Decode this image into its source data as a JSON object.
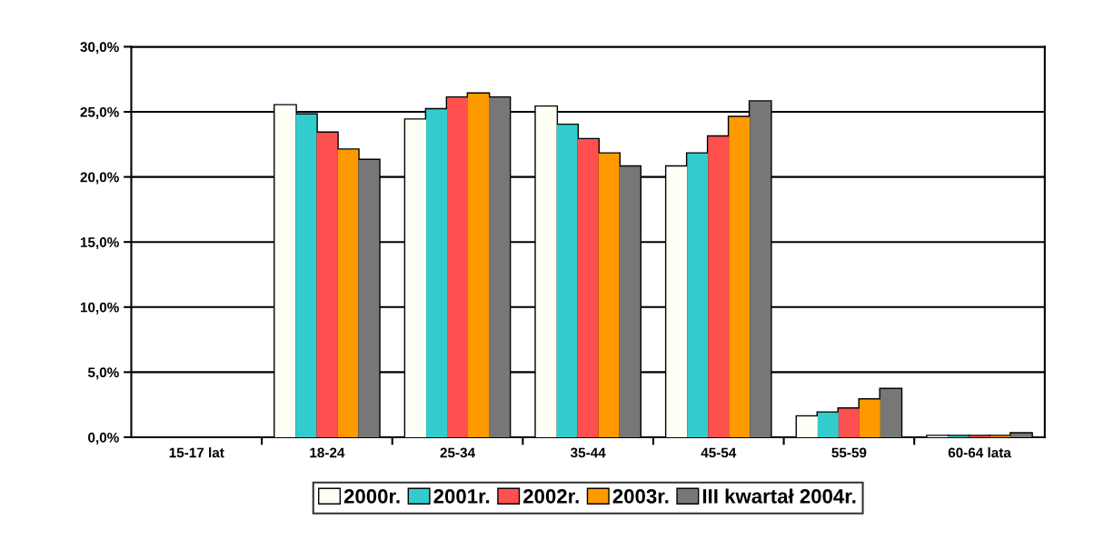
{
  "chart_data": {
    "type": "bar",
    "categories": [
      "15-17 lat",
      "18-24",
      "25-34",
      "35-44",
      "45-54",
      "55-59",
      "60-64 lata"
    ],
    "series": [
      {
        "name": "2000r.",
        "color": "#fffff5",
        "values": [
          0.0,
          25.5,
          24.4,
          25.4,
          20.8,
          1.6,
          0.1
        ]
      },
      {
        "name": "2001r.",
        "color": "#33cccc",
        "values": [
          0.0,
          24.8,
          25.2,
          24.0,
          21.8,
          1.9,
          0.1
        ]
      },
      {
        "name": "2002r.",
        "color": "#ff5050",
        "values": [
          0.0,
          23.4,
          26.1,
          22.9,
          23.1,
          2.2,
          0.1
        ]
      },
      {
        "name": "2003r.",
        "color": "#ff9900",
        "values": [
          0.0,
          22.1,
          26.4,
          21.8,
          24.6,
          2.9,
          0.1
        ]
      },
      {
        "name": "III kwartał 2004r.",
        "color": "#777777",
        "values": [
          0.0,
          21.3,
          26.1,
          20.8,
          25.8,
          3.7,
          0.3
        ]
      }
    ],
    "ylim": [
      0,
      30
    ],
    "yticks": [
      {
        "value": 0,
        "label": "0,0%"
      },
      {
        "value": 5,
        "label": "5,0%"
      },
      {
        "value": 10,
        "label": "10,0%"
      },
      {
        "value": 15,
        "label": "15,0%"
      },
      {
        "value": 20,
        "label": "20,0%"
      },
      {
        "value": 25,
        "label": "25,0%"
      },
      {
        "value": 30,
        "label": "30,0%"
      }
    ],
    "grid": "y",
    "legend": "bottom"
  }
}
